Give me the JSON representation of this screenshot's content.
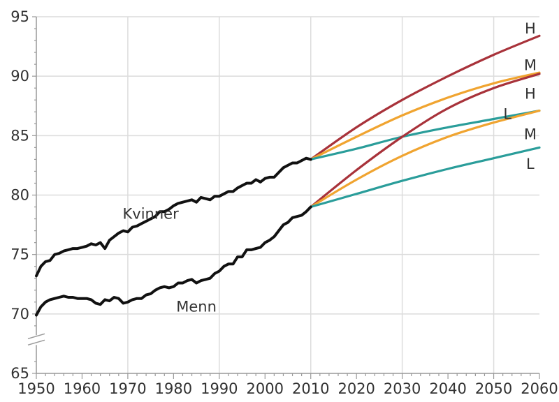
{
  "chart_data": {
    "type": "line",
    "xlim": [
      1950,
      2060
    ],
    "ylim": [
      65,
      95
    ],
    "xticks": [
      1950,
      1960,
      1970,
      1980,
      1990,
      2000,
      2010,
      2020,
      2030,
      2040,
      2050,
      2060
    ],
    "yticks": [
      65,
      70,
      75,
      80,
      85,
      90,
      95
    ],
    "xtick_labels": [
      "1950",
      "1960",
      "1970",
      "1980",
      "1990",
      "2000",
      "2010",
      "2020",
      "2030",
      "2040",
      "2050",
      "2060"
    ],
    "ytick_labels": [
      "65",
      "70",
      "75",
      "80",
      "85",
      "90",
      "95"
    ],
    "grid": true,
    "y_axis_break": true,
    "colors": {
      "historical": "#111111",
      "H": "#a8323a",
      "M": "#f0a430",
      "L": "#2a9d9a",
      "grid": "#dcdcdc",
      "axis": "#999999"
    },
    "historical": [
      {
        "name": "Kvinner",
        "color_key": "historical",
        "points": [
          [
            1950,
            73.2
          ],
          [
            1951,
            74.0
          ],
          [
            1952,
            74.4
          ],
          [
            1953,
            74.5
          ],
          [
            1954,
            75.0
          ],
          [
            1955,
            75.1
          ],
          [
            1956,
            75.3
          ],
          [
            1957,
            75.4
          ],
          [
            1958,
            75.5
          ],
          [
            1959,
            75.5
          ],
          [
            1960,
            75.6
          ],
          [
            1961,
            75.7
          ],
          [
            1962,
            75.9
          ],
          [
            1963,
            75.8
          ],
          [
            1964,
            76.0
          ],
          [
            1965,
            75.5
          ],
          [
            1966,
            76.2
          ],
          [
            1967,
            76.5
          ],
          [
            1968,
            76.8
          ],
          [
            1969,
            77.0
          ],
          [
            1970,
            76.9
          ],
          [
            1971,
            77.3
          ],
          [
            1972,
            77.4
          ],
          [
            1973,
            77.6
          ],
          [
            1974,
            77.8
          ],
          [
            1975,
            78.0
          ],
          [
            1976,
            78.2
          ],
          [
            1977,
            78.6
          ],
          [
            1978,
            78.6
          ],
          [
            1979,
            78.8
          ],
          [
            1980,
            79.1
          ],
          [
            1981,
            79.3
          ],
          [
            1982,
            79.4
          ],
          [
            1983,
            79.5
          ],
          [
            1984,
            79.6
          ],
          [
            1985,
            79.4
          ],
          [
            1986,
            79.8
          ],
          [
            1987,
            79.7
          ],
          [
            1988,
            79.6
          ],
          [
            1989,
            79.9
          ],
          [
            1990,
            79.9
          ],
          [
            1991,
            80.1
          ],
          [
            1992,
            80.3
          ],
          [
            1993,
            80.3
          ],
          [
            1994,
            80.6
          ],
          [
            1995,
            80.8
          ],
          [
            1996,
            81.0
          ],
          [
            1997,
            81.0
          ],
          [
            1998,
            81.3
          ],
          [
            1999,
            81.1
          ],
          [
            2000,
            81.4
          ],
          [
            2001,
            81.5
          ],
          [
            2002,
            81.5
          ],
          [
            2003,
            81.9
          ],
          [
            2004,
            82.3
          ],
          [
            2005,
            82.5
          ],
          [
            2006,
            82.7
          ],
          [
            2007,
            82.7
          ],
          [
            2008,
            82.9
          ],
          [
            2009,
            83.1
          ],
          [
            2010,
            83.0
          ]
        ]
      },
      {
        "name": "Menn",
        "color_key": "historical",
        "points": [
          [
            1950,
            69.9
          ],
          [
            1951,
            70.6
          ],
          [
            1952,
            71.0
          ],
          [
            1953,
            71.2
          ],
          [
            1954,
            71.3
          ],
          [
            1955,
            71.4
          ],
          [
            1956,
            71.5
          ],
          [
            1957,
            71.4
          ],
          [
            1958,
            71.4
          ],
          [
            1959,
            71.3
          ],
          [
            1960,
            71.3
          ],
          [
            1961,
            71.3
          ],
          [
            1962,
            71.2
          ],
          [
            1963,
            70.9
          ],
          [
            1964,
            70.8
          ],
          [
            1965,
            71.2
          ],
          [
            1966,
            71.1
          ],
          [
            1967,
            71.4
          ],
          [
            1968,
            71.3
          ],
          [
            1969,
            70.9
          ],
          [
            1970,
            71.0
          ],
          [
            1971,
            71.2
          ],
          [
            1972,
            71.3
          ],
          [
            1973,
            71.3
          ],
          [
            1974,
            71.6
          ],
          [
            1975,
            71.7
          ],
          [
            1976,
            72.0
          ],
          [
            1977,
            72.2
          ],
          [
            1978,
            72.3
          ],
          [
            1979,
            72.2
          ],
          [
            1980,
            72.3
          ],
          [
            1981,
            72.6
          ],
          [
            1982,
            72.6
          ],
          [
            1983,
            72.8
          ],
          [
            1984,
            72.9
          ],
          [
            1985,
            72.6
          ],
          [
            1986,
            72.8
          ],
          [
            1987,
            72.9
          ],
          [
            1988,
            73.0
          ],
          [
            1989,
            73.4
          ],
          [
            1990,
            73.6
          ],
          [
            1991,
            74.0
          ],
          [
            1992,
            74.2
          ],
          [
            1993,
            74.2
          ],
          [
            1994,
            74.8
          ],
          [
            1995,
            74.8
          ],
          [
            1996,
            75.4
          ],
          [
            1997,
            75.4
          ],
          [
            1998,
            75.5
          ],
          [
            1999,
            75.6
          ],
          [
            2000,
            76.0
          ],
          [
            2001,
            76.2
          ],
          [
            2002,
            76.5
          ],
          [
            2003,
            77.0
          ],
          [
            2004,
            77.5
          ],
          [
            2005,
            77.7
          ],
          [
            2006,
            78.1
          ],
          [
            2007,
            78.2
          ],
          [
            2008,
            78.3
          ],
          [
            2009,
            78.6
          ],
          [
            2010,
            79.0
          ]
        ]
      }
    ],
    "projections": [
      {
        "group": "Kvinner",
        "scenario": "H",
        "color_key": "H",
        "points": [
          [
            2010,
            83.0
          ],
          [
            2020,
            85.7
          ],
          [
            2030,
            88.0
          ],
          [
            2040,
            90.0
          ],
          [
            2050,
            91.8
          ],
          [
            2060,
            93.4
          ]
        ]
      },
      {
        "group": "Kvinner",
        "scenario": "M",
        "color_key": "M",
        "points": [
          [
            2010,
            83.0
          ],
          [
            2020,
            84.9
          ],
          [
            2030,
            86.7
          ],
          [
            2040,
            88.2
          ],
          [
            2050,
            89.4
          ],
          [
            2060,
            90.3
          ]
        ]
      },
      {
        "group": "Kvinner",
        "scenario": "L",
        "color_key": "L",
        "points": [
          [
            2010,
            83.0
          ],
          [
            2020,
            83.9
          ],
          [
            2030,
            84.9
          ],
          [
            2040,
            85.7
          ],
          [
            2050,
            86.4
          ],
          [
            2060,
            87.1
          ]
        ]
      },
      {
        "group": "Menn",
        "scenario": "H",
        "color_key": "H",
        "points": [
          [
            2010,
            79.0
          ],
          [
            2020,
            82.1
          ],
          [
            2030,
            84.9
          ],
          [
            2040,
            87.3
          ],
          [
            2050,
            89.0
          ],
          [
            2060,
            90.2
          ]
        ]
      },
      {
        "group": "Menn",
        "scenario": "M",
        "color_key": "M",
        "points": [
          [
            2010,
            79.0
          ],
          [
            2020,
            81.3
          ],
          [
            2030,
            83.3
          ],
          [
            2040,
            84.9
          ],
          [
            2050,
            86.1
          ],
          [
            2060,
            87.1
          ]
        ]
      },
      {
        "group": "Menn",
        "scenario": "L",
        "color_key": "L",
        "points": [
          [
            2010,
            79.0
          ],
          [
            2020,
            80.1
          ],
          [
            2030,
            81.2
          ],
          [
            2040,
            82.2
          ],
          [
            2050,
            83.1
          ],
          [
            2060,
            84.0
          ]
        ]
      }
    ],
    "series_labels": [
      {
        "text": "Kvinner",
        "x": 1975,
        "y": 78.0
      },
      {
        "text": "Menn",
        "x": 1985,
        "y": 70.2
      }
    ],
    "scenario_labels": [
      {
        "text": "H",
        "x": 2058,
        "y": 93.6
      },
      {
        "text": "M",
        "x": 2058,
        "y": 90.5
      },
      {
        "text": "H",
        "x": 2058,
        "y": 88.1
      },
      {
        "text": "L",
        "x": 2053,
        "y": 86.4
      },
      {
        "text": "M",
        "x": 2058,
        "y": 84.7
      },
      {
        "text": "L",
        "x": 2058,
        "y": 82.2
      }
    ]
  }
}
